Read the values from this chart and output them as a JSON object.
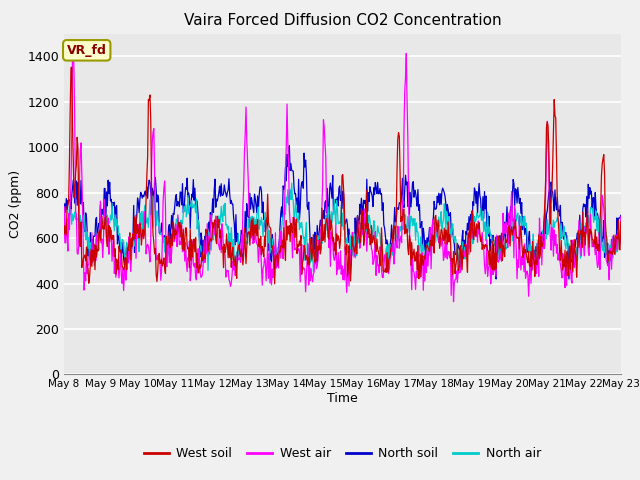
{
  "title": "Vaira Forced Diffusion CO2 Concentration",
  "xlabel": "Time",
  "ylabel": "CO2 (ppm)",
  "ylim": [
    0,
    1500
  ],
  "yticks": [
    0,
    200,
    400,
    600,
    800,
    1000,
    1200,
    1400
  ],
  "plot_bg_color": "#f0f0f0",
  "axes_bg_color": "#e8e8e8",
  "grid_color": "#ffffff",
  "annotation_text": "VR_fd",
  "annotation_bg": "#ffffcc",
  "annotation_border": "#999900",
  "west_soil_color": "#cc0000",
  "west_air_color": "#ff00ff",
  "north_soil_color": "#0000cc",
  "north_air_color": "#00cccc",
  "n_points": 720,
  "xtick_labels": [
    "May 8",
    "May 9",
    "May 10",
    "May 11",
    "May 12",
    "May 13",
    "May 14",
    "May 15",
    "May 16",
    "May 17",
    "May 18",
    "May 19",
    "May 20",
    "May 21",
    "May 22",
    "May 23"
  ],
  "legend_entries": [
    "West soil",
    "West air",
    "North soil",
    "North air"
  ]
}
